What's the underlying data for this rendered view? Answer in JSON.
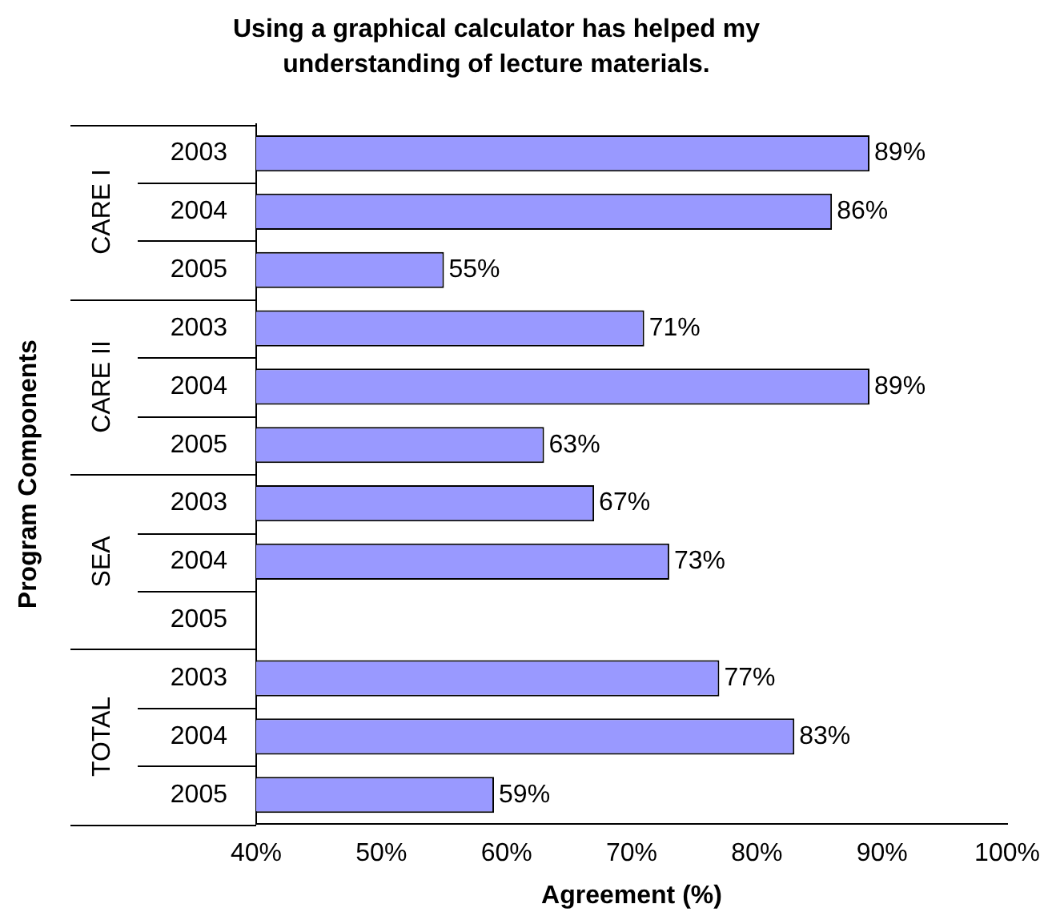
{
  "chart_data": {
    "type": "bar",
    "orientation": "horizontal",
    "title": "Using a graphical calculator has helped my understanding of lecture materials.",
    "xlabel": "Agreement (%)",
    "ylabel": "Program Components",
    "categories": [
      "2003",
      "2004",
      "2005",
      "2003",
      "2004",
      "2005",
      "2003",
      "2004",
      "2005",
      "2003",
      "2004",
      "2005"
    ],
    "annotations": [
      "CARE I",
      "CARE II",
      "SEA",
      "TOTAL"
    ],
    "values": [
      89,
      86,
      55,
      71,
      89,
      63,
      67,
      73,
      null,
      77,
      83,
      59
    ],
    "value_labels": [
      "89%",
      "86%",
      "55%",
      "71%",
      "89%",
      "63%",
      "67%",
      "73%",
      null,
      "77%",
      "83%",
      "59%"
    ],
    "color": "#9999ff",
    "xlim": [
      40,
      100
    ],
    "xticks": [
      {
        "value": 40,
        "label": "40%"
      },
      {
        "value": 50,
        "label": "50%"
      },
      {
        "value": 60,
        "label": "60%"
      },
      {
        "value": 70,
        "label": "70%"
      },
      {
        "value": 80,
        "label": "80%"
      },
      {
        "value": 90,
        "label": "90%"
      },
      {
        "value": 100,
        "label": "100%"
      }
    ],
    "grid": false,
    "legend": false
  }
}
